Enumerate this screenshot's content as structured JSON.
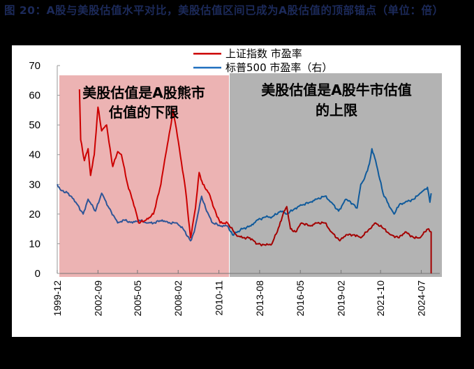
{
  "title": "图 20：A股与美股估值水平对比，美股估值区间已成为A股估值的顶部锚点（单位：倍）",
  "legend": {
    "series1": "上证指数 市盈率",
    "series2": "标普500 市盈率（右）"
  },
  "annotations": {
    "bear_line1": "美股估值是A股熊市",
    "bear_line2": "估值的下限",
    "bull_line1": "美股估值是A股牛市估值",
    "bull_line2": "的上限"
  },
  "colors": {
    "series1": "#cc0000",
    "series1_dark": "#a30000",
    "series2": "#2e5597",
    "series2_dark": "#0f5a9b",
    "bear_zone": "#ecb3b3",
    "bull_zone": "#b3b3b3",
    "title": "#1c2a5a"
  },
  "chart_data": {
    "type": "line",
    "title": "A股与美股估值水平对比，美股估值区间已成为A股估值的顶部锚点（单位：倍）",
    "xlabel": "",
    "ylabel": "",
    "ylim": [
      0,
      70
    ],
    "yticks": [
      "0",
      "10",
      "20",
      "30",
      "40",
      "50",
      "60",
      "70"
    ],
    "xticks": [
      "1999-12",
      "2002-09",
      "2005-05",
      "2008-02",
      "2010-11",
      "2013-08",
      "2016-05",
      "2019-02",
      "2021-10",
      "2024-07"
    ],
    "legend_position": "top",
    "shaded_regions": [
      {
        "label": "美股估值是A股熊市估值的下限",
        "from": "1999-12",
        "to": "2011-06",
        "color": "#ecb3b3"
      },
      {
        "label": "美股估值是A股牛市估值的上限",
        "from": "2011-06",
        "to": "2025-03",
        "color": "#b3b3b3"
      }
    ],
    "series": [
      {
        "name": "上证指数 市盈率",
        "x": [
          "2001-06",
          "2001-07",
          "2001-10",
          "2002-01",
          "2002-03",
          "2002-06",
          "2002-09",
          "2002-12",
          "2003-04",
          "2003-06",
          "2003-09",
          "2004-01",
          "2004-04",
          "2004-09",
          "2005-03",
          "2005-06",
          "2005-12",
          "2006-06",
          "2006-12",
          "2007-03",
          "2007-06",
          "2007-10",
          "2008-03",
          "2008-08",
          "2008-12",
          "2009-04",
          "2009-07",
          "2009-10",
          "2010-03",
          "2010-07",
          "2010-12",
          "2011-06",
          "2012-01",
          "2012-06",
          "2012-12",
          "2013-06",
          "2014-01",
          "2014-06",
          "2014-12",
          "2015-03",
          "2015-06",
          "2015-09",
          "2016-01",
          "2016-06",
          "2017-01",
          "2017-06",
          "2018-01",
          "2018-06",
          "2019-01",
          "2019-06",
          "2020-01",
          "2020-06",
          "2021-01",
          "2021-06",
          "2022-01",
          "2022-06",
          "2023-01",
          "2023-06",
          "2024-01",
          "2024-06",
          "2024-10",
          "2025-01",
          "2025-03",
          "2025-03"
        ],
        "values": [
          62,
          45,
          38,
          42,
          33,
          40,
          56,
          48,
          50,
          44,
          36,
          41,
          40,
          30,
          22,
          17,
          18,
          20,
          30,
          38,
          45,
          55,
          42,
          28,
          12,
          22,
          34,
          30,
          27,
          22,
          17,
          17,
          13,
          12,
          12,
          10,
          9.5,
          10,
          16,
          20,
          22.5,
          15,
          14,
          17,
          16,
          17,
          17,
          14,
          11,
          13,
          13,
          12,
          15,
          17,
          15,
          13,
          12,
          14,
          12,
          12,
          14,
          15,
          14,
          0
        ]
      },
      {
        "name": "标普500 市盈率（右）",
        "x": [
          "1999-12",
          "2000-03",
          "2000-09",
          "2001-03",
          "2001-09",
          "2002-01",
          "2002-07",
          "2002-12",
          "2003-06",
          "2004-01",
          "2004-06",
          "2005-01",
          "2005-06",
          "2006-01",
          "2006-06",
          "2007-01",
          "2007-06",
          "2008-01",
          "2008-06",
          "2008-12",
          "2009-03",
          "2009-06",
          "2009-09",
          "2010-01",
          "2010-06",
          "2011-01",
          "2011-06",
          "2011-10",
          "2012-06",
          "2013-01",
          "2013-06",
          "2014-01",
          "2014-06",
          "2015-01",
          "2015-06",
          "2016-01",
          "2016-06",
          "2017-01",
          "2017-06",
          "2018-01",
          "2018-06",
          "2018-12",
          "2019-06",
          "2020-01",
          "2020-03",
          "2020-06",
          "2020-09",
          "2021-01",
          "2021-03",
          "2021-06",
          "2021-12",
          "2022-06",
          "2022-09",
          "2023-01",
          "2023-06",
          "2024-01",
          "2024-06",
          "2024-09",
          "2024-12",
          "2025-02",
          "2025-03"
        ],
        "values": [
          30,
          28,
          27,
          24,
          20,
          25,
          21,
          27,
          22,
          17,
          18,
          17,
          18,
          17,
          17,
          18,
          17,
          17,
          15,
          11,
          14,
          20,
          26,
          21,
          17,
          16,
          16,
          13,
          15,
          16,
          18,
          19,
          19,
          21,
          20,
          22,
          23,
          24,
          25,
          26,
          24,
          21,
          25,
          23,
          22,
          30,
          32,
          37,
          42,
          38,
          27,
          22,
          20,
          23,
          24,
          25,
          27,
          28,
          29,
          24,
          27
        ]
      }
    ]
  }
}
